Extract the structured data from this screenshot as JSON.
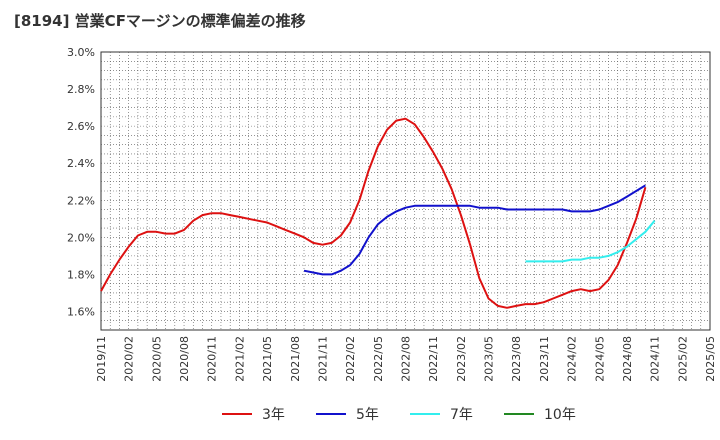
{
  "chart_data": {
    "type": "line",
    "title": "[8194]  営業CFマージンの標準偏差の推移",
    "xlabel": "",
    "ylabel": "",
    "ylim": [
      0.015,
      0.03
    ],
    "yticks": [
      "1.6%",
      "1.8%",
      "2.0%",
      "2.2%",
      "2.4%",
      "2.6%",
      "2.8%",
      "3.0%"
    ],
    "yticks_values": [
      0.016,
      0.018,
      0.02,
      0.022,
      0.024,
      0.026,
      0.028,
      0.03
    ],
    "xticks": [
      "2019/11",
      "2020/02",
      "2020/05",
      "2020/08",
      "2020/11",
      "2021/02",
      "2021/05",
      "2021/08",
      "2021/11",
      "2022/02",
      "2022/05",
      "2022/08",
      "2022/11",
      "2023/02",
      "2023/05",
      "2023/08",
      "2023/11",
      "2024/02",
      "2024/05",
      "2024/08",
      "2024/11",
      "2025/02",
      "2025/05"
    ],
    "xlim": [
      "2019/11",
      "2025/05"
    ],
    "grid": true,
    "legend_position": "bottom",
    "series": [
      {
        "name": "3年",
        "color": "#dd1111",
        "points": [
          [
            "2019/11",
            1.71
          ],
          [
            "2019/12",
            1.8
          ],
          [
            "2020/01",
            1.88
          ],
          [
            "2020/02",
            1.95
          ],
          [
            "2020/03",
            2.01
          ],
          [
            "2020/04",
            2.03
          ],
          [
            "2020/05",
            2.03
          ],
          [
            "2020/06",
            2.02
          ],
          [
            "2020/07",
            2.02
          ],
          [
            "2020/08",
            2.04
          ],
          [
            "2020/09",
            2.09
          ],
          [
            "2020/10",
            2.12
          ],
          [
            "2020/11",
            2.13
          ],
          [
            "2020/12",
            2.13
          ],
          [
            "2021/01",
            2.12
          ],
          [
            "2021/02",
            2.11
          ],
          [
            "2021/03",
            2.1
          ],
          [
            "2021/04",
            2.09
          ],
          [
            "2021/05",
            2.08
          ],
          [
            "2021/06",
            2.06
          ],
          [
            "2021/07",
            2.04
          ],
          [
            "2021/08",
            2.02
          ],
          [
            "2021/09",
            2.0
          ],
          [
            "2021/10",
            1.97
          ],
          [
            "2021/11",
            1.96
          ],
          [
            "2021/12",
            1.97
          ],
          [
            "2022/01",
            2.01
          ],
          [
            "2022/02",
            2.08
          ],
          [
            "2022/03",
            2.2
          ],
          [
            "2022/04",
            2.36
          ],
          [
            "2022/05",
            2.49
          ],
          [
            "2022/06",
            2.58
          ],
          [
            "2022/07",
            2.63
          ],
          [
            "2022/08",
            2.64
          ],
          [
            "2022/09",
            2.61
          ],
          [
            "2022/10",
            2.54
          ],
          [
            "2022/11",
            2.46
          ],
          [
            "2022/12",
            2.37
          ],
          [
            "2023/01",
            2.26
          ],
          [
            "2023/02",
            2.12
          ],
          [
            "2023/03",
            1.96
          ],
          [
            "2023/04",
            1.78
          ],
          [
            "2023/05",
            1.67
          ],
          [
            "2023/06",
            1.63
          ],
          [
            "2023/07",
            1.62
          ],
          [
            "2023/08",
            1.63
          ],
          [
            "2023/09",
            1.64
          ],
          [
            "2023/10",
            1.64
          ],
          [
            "2023/11",
            1.65
          ],
          [
            "2023/12",
            1.67
          ],
          [
            "2024/01",
            1.69
          ],
          [
            "2024/02",
            1.71
          ],
          [
            "2024/03",
            1.72
          ],
          [
            "2024/04",
            1.71
          ],
          [
            "2024/05",
            1.72
          ],
          [
            "2024/06",
            1.77
          ],
          [
            "2024/07",
            1.85
          ],
          [
            "2024/08",
            1.97
          ],
          [
            "2024/09",
            2.1
          ],
          [
            "2024/10",
            2.27
          ]
        ]
      },
      {
        "name": "5年",
        "color": "#1111cc",
        "points": [
          [
            "2021/09",
            1.82
          ],
          [
            "2021/10",
            1.81
          ],
          [
            "2021/11",
            1.8
          ],
          [
            "2021/12",
            1.8
          ],
          [
            "2022/01",
            1.82
          ],
          [
            "2022/02",
            1.85
          ],
          [
            "2022/03",
            1.91
          ],
          [
            "2022/04",
            2.0
          ],
          [
            "2022/05",
            2.07
          ],
          [
            "2022/06",
            2.11
          ],
          [
            "2022/07",
            2.14
          ],
          [
            "2022/08",
            2.16
          ],
          [
            "2022/09",
            2.17
          ],
          [
            "2022/10",
            2.17
          ],
          [
            "2022/11",
            2.17
          ],
          [
            "2022/12",
            2.17
          ],
          [
            "2023/01",
            2.17
          ],
          [
            "2023/02",
            2.17
          ],
          [
            "2023/03",
            2.17
          ],
          [
            "2023/04",
            2.16
          ],
          [
            "2023/05",
            2.16
          ],
          [
            "2023/06",
            2.16
          ],
          [
            "2023/07",
            2.15
          ],
          [
            "2023/08",
            2.15
          ],
          [
            "2023/09",
            2.15
          ],
          [
            "2023/10",
            2.15
          ],
          [
            "2023/11",
            2.15
          ],
          [
            "2023/12",
            2.15
          ],
          [
            "2024/01",
            2.15
          ],
          [
            "2024/02",
            2.14
          ],
          [
            "2024/03",
            2.14
          ],
          [
            "2024/04",
            2.14
          ],
          [
            "2024/05",
            2.15
          ],
          [
            "2024/06",
            2.17
          ],
          [
            "2024/07",
            2.19
          ],
          [
            "2024/08",
            2.22
          ],
          [
            "2024/09",
            2.25
          ],
          [
            "2024/10",
            2.28
          ]
        ]
      },
      {
        "name": "7年",
        "color": "#33eeee",
        "points": [
          [
            "2023/09",
            1.87
          ],
          [
            "2023/10",
            1.87
          ],
          [
            "2023/11",
            1.87
          ],
          [
            "2023/12",
            1.87
          ],
          [
            "2024/01",
            1.87
          ],
          [
            "2024/02",
            1.88
          ],
          [
            "2024/03",
            1.88
          ],
          [
            "2024/04",
            1.89
          ],
          [
            "2024/05",
            1.89
          ],
          [
            "2024/06",
            1.9
          ],
          [
            "2024/07",
            1.92
          ],
          [
            "2024/08",
            1.95
          ],
          [
            "2024/09",
            1.99
          ],
          [
            "2024/10",
            2.03
          ],
          [
            "2024/11",
            2.09
          ]
        ]
      },
      {
        "name": "10年",
        "color": "#228822",
        "points": []
      }
    ]
  }
}
